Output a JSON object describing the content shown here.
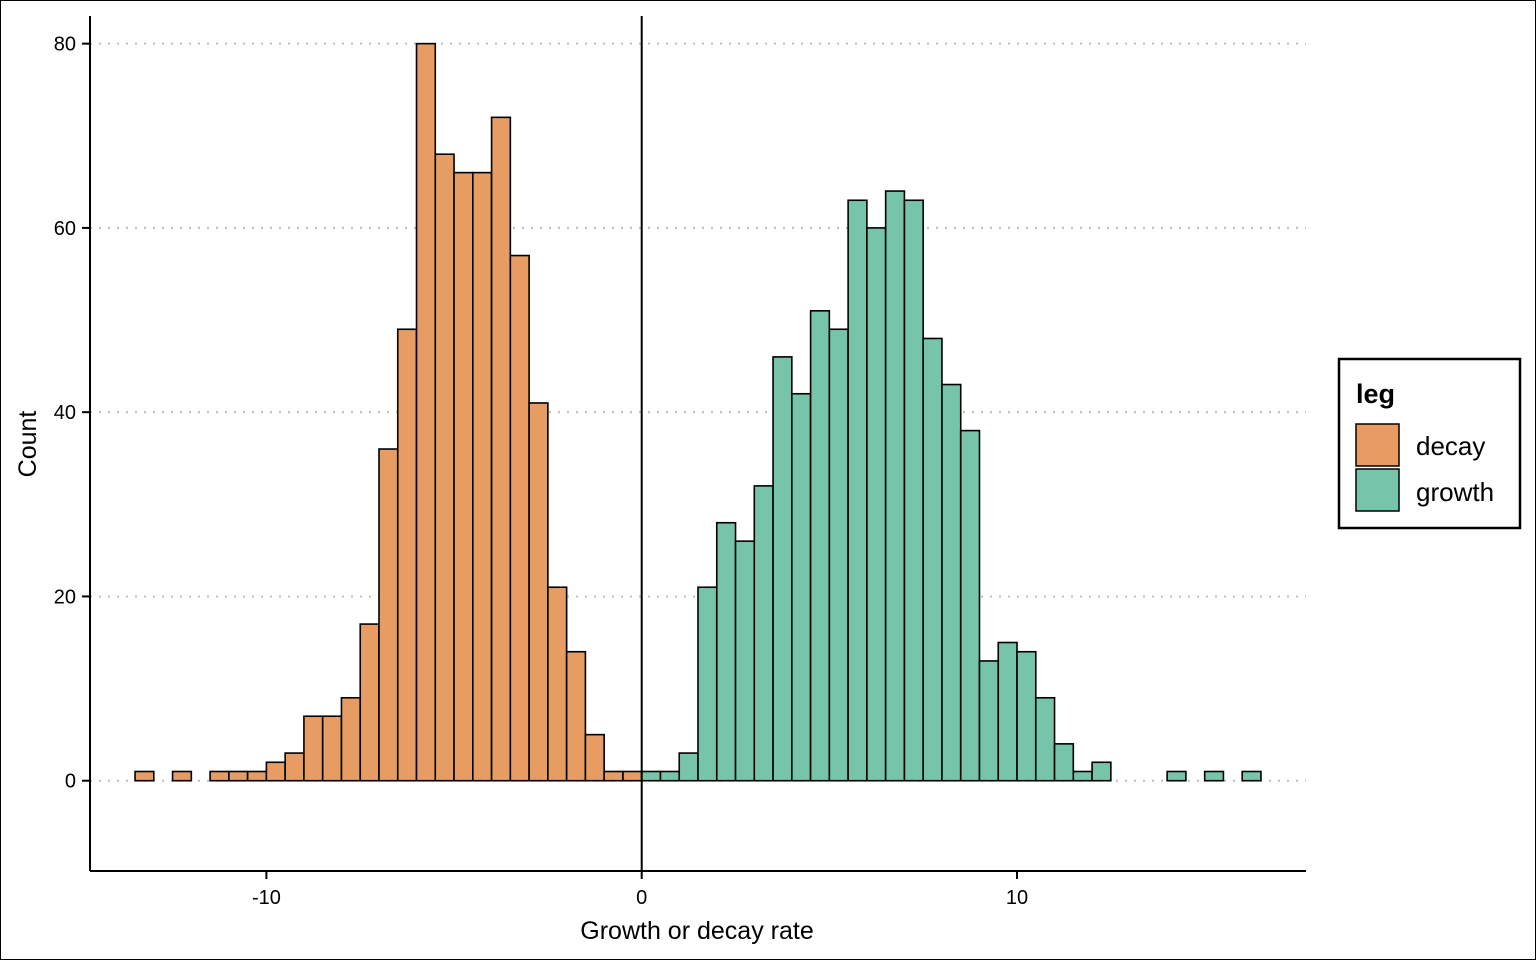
{
  "chart_data": {
    "type": "bar",
    "subtype": "histogram",
    "xlabel": "Growth or decay rate",
    "ylabel": "Count",
    "xlim": [
      -14.7,
      17.7
    ],
    "ylim": [
      -9.8,
      83
    ],
    "x_ticks": [
      -10,
      0,
      10
    ],
    "x_tick_labels": [
      "-10",
      "0",
      "10"
    ],
    "y_ticks": [
      0,
      20,
      40,
      60,
      80
    ],
    "y_tick_labels": [
      "0",
      "20",
      "40",
      "60",
      "80"
    ],
    "grid": "horizontal dotted",
    "vline_x": 0,
    "bin_width": 0.5,
    "legend": {
      "title": "leg",
      "placement": "right",
      "entries": [
        {
          "label": "decay",
          "color": "#E69C63"
        },
        {
          "label": "growth",
          "color": "#76C5AA"
        }
      ]
    },
    "series": [
      {
        "name": "decay",
        "color": "#E69C63",
        "bins": [
          [
            -13.5,
            1
          ],
          [
            -12.5,
            1
          ],
          [
            -11.5,
            1
          ],
          [
            -11.0,
            1
          ],
          [
            -10.5,
            1
          ],
          [
            -10.0,
            2
          ],
          [
            -9.5,
            3
          ],
          [
            -9.0,
            7
          ],
          [
            -8.5,
            7
          ],
          [
            -8.0,
            9
          ],
          [
            -7.5,
            17
          ],
          [
            -7.0,
            36
          ],
          [
            -6.5,
            49
          ],
          [
            -6.0,
            80
          ],
          [
            -5.5,
            68
          ],
          [
            -5.0,
            66
          ],
          [
            -4.5,
            66
          ],
          [
            -4.0,
            72
          ],
          [
            -3.5,
            57
          ],
          [
            -3.0,
            41
          ],
          [
            -2.5,
            21
          ],
          [
            -2.0,
            14
          ],
          [
            -1.5,
            5
          ],
          [
            -1.0,
            1
          ],
          [
            -0.5,
            1
          ]
        ]
      },
      {
        "name": "growth",
        "color": "#76C5AA",
        "bins": [
          [
            0.0,
            1
          ],
          [
            0.5,
            1
          ],
          [
            1.0,
            3
          ],
          [
            1.5,
            21
          ],
          [
            2.0,
            28
          ],
          [
            2.5,
            26
          ],
          [
            3.0,
            32
          ],
          [
            3.5,
            46
          ],
          [
            4.0,
            42
          ],
          [
            4.5,
            51
          ],
          [
            5.0,
            49
          ],
          [
            5.5,
            63
          ],
          [
            6.0,
            60
          ],
          [
            6.5,
            64
          ],
          [
            7.0,
            63
          ],
          [
            7.5,
            48
          ],
          [
            8.0,
            43
          ],
          [
            8.5,
            38
          ],
          [
            9.0,
            13
          ],
          [
            9.5,
            15
          ],
          [
            10.0,
            14
          ],
          [
            10.5,
            9
          ],
          [
            11.0,
            4
          ],
          [
            11.5,
            1
          ],
          [
            12.0,
            2
          ],
          [
            14.0,
            1
          ],
          [
            15.0,
            1
          ],
          [
            16.0,
            1
          ]
        ]
      }
    ]
  }
}
